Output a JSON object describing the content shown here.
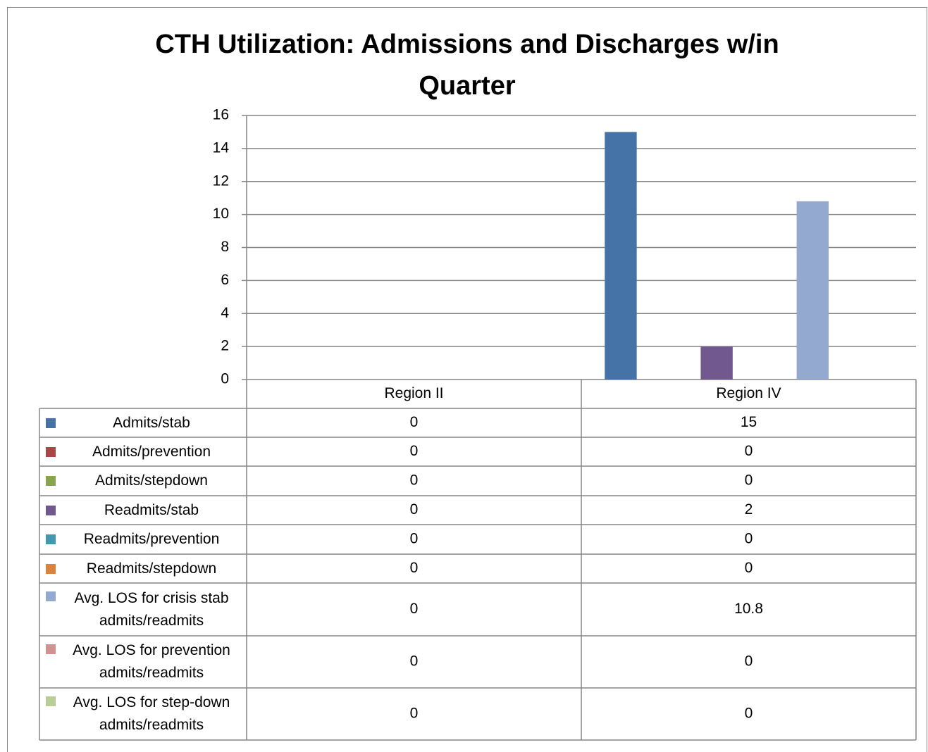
{
  "chart_data": {
    "type": "bar",
    "title": "CTH Utilization: Admissions and Discharges w/in Quarter",
    "categories": [
      "Region II",
      "Region IV"
    ],
    "series": [
      {
        "name": "Admits/stab",
        "color": "#4572A7",
        "values": [
          0,
          15
        ]
      },
      {
        "name": "Admits/prevention",
        "color": "#AA4643",
        "values": [
          0,
          0
        ]
      },
      {
        "name": "Admits/stepdown",
        "color": "#89A54E",
        "values": [
          0,
          0
        ]
      },
      {
        "name": "Readmits/stab",
        "color": "#71588F",
        "values": [
          0,
          2
        ]
      },
      {
        "name": "Readmits/prevention",
        "color": "#4198AF",
        "values": [
          0,
          0
        ]
      },
      {
        "name": "Readmits/stepdown",
        "color": "#DB843D",
        "values": [
          0,
          0
        ]
      },
      {
        "name": "Avg. LOS for crisis stab admits/readmits",
        "color": "#93A9CF",
        "values": [
          0,
          10.8
        ]
      },
      {
        "name": "Avg. LOS for prevention admits/readmits",
        "color": "#D19392",
        "values": [
          0,
          0
        ]
      },
      {
        "name": "Avg. LOS for step-down admits/readmits",
        "color": "#B9CD96",
        "values": [
          0,
          0
        ]
      }
    ],
    "ylim": [
      0,
      16
    ],
    "yticks": [
      0,
      2,
      4,
      6,
      8,
      10,
      12,
      14,
      16
    ],
    "grid": true
  }
}
